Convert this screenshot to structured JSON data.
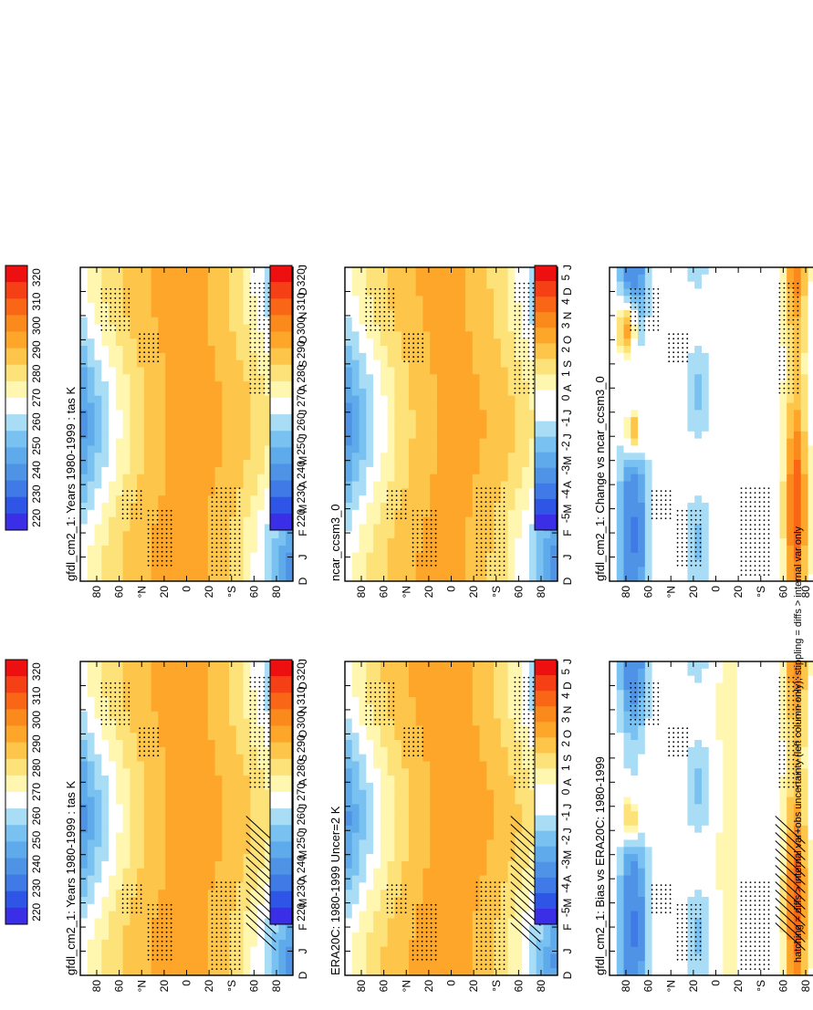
{
  "footnote": "hatching = diffs > internal var+obs uncertainty (left column only); stippling = diffs > internal var only",
  "colors": {
    "abs": [
      "#3a2ee6",
      "#2f55e6",
      "#3f7ae6",
      "#4f93e6",
      "#5faaeb",
      "#78c1f0",
      "#a9dcf5",
      "#ffffff",
      "#fff7b0",
      "#fde27a",
      "#fdc54a",
      "#fda62a",
      "#fb8a1c",
      "#f86616",
      "#f44014",
      "#ee1010"
    ],
    "diff": [
      "#3a2ee6",
      "#2f55e6",
      "#3f7ae6",
      "#4f93e6",
      "#5faaeb",
      "#78c1f0",
      "#a9dcf5",
      "#ffffff",
      "#ffffff",
      "#fff7b0",
      "#fde27a",
      "#fdc54a",
      "#fda62a",
      "#fb8a1c",
      "#f86616",
      "#f44014",
      "#ee1010"
    ]
  },
  "chart_data": [
    {
      "id": "p1",
      "type": "heatmap",
      "title": "gfdl_cm2_1: Years 1980-1999 : tas K",
      "months": [
        "D",
        "J",
        "F",
        "M",
        "A",
        "M",
        "J",
        "J",
        "A",
        "S",
        "O",
        "N",
        "D",
        "J"
      ],
      "lat_ticks": [
        "80",
        "60",
        "°N",
        "20",
        "0",
        "20",
        "°S",
        "60",
        "80"
      ],
      "legend": [
        "320",
        "310",
        "300",
        "290",
        "280",
        "270",
        "260",
        "250",
        "240",
        "230",
        "220"
      ],
      "palette": "abs",
      "hatch": true
    },
    {
      "id": "p2",
      "type": "heatmap",
      "title": "gfdl_cm2_1: Years 1980-1999 : tas K",
      "months": [
        "D",
        "J",
        "F",
        "M",
        "A",
        "M",
        "J",
        "J",
        "A",
        "S",
        "O",
        "N",
        "D",
        "J"
      ],
      "lat_ticks": [
        "80",
        "60",
        "°N",
        "20",
        "0",
        "20",
        "°S",
        "60",
        "80"
      ],
      "legend": [
        "320",
        "310",
        "300",
        "290",
        "280",
        "270",
        "260",
        "250",
        "240",
        "230",
        "220"
      ],
      "palette": "abs",
      "hatch": false
    },
    {
      "id": "p3",
      "type": "heatmap",
      "title": "ERA20C: 1980-1999 Uncer=2 K",
      "months": [
        "D",
        "J",
        "F",
        "M",
        "A",
        "M",
        "J",
        "J",
        "A",
        "S",
        "O",
        "N",
        "D",
        "J"
      ],
      "lat_ticks": [
        "80",
        "60",
        "°N",
        "20",
        "0",
        "20",
        "°S",
        "60",
        "80"
      ],
      "legend": [
        "320",
        "310",
        "300",
        "290",
        "280",
        "270",
        "260",
        "250",
        "240",
        "230",
        "220"
      ],
      "palette": "abs",
      "hatch": true
    },
    {
      "id": "p4",
      "type": "heatmap",
      "title": "ncar_ccsm3_0",
      "months": [
        "D",
        "J",
        "F",
        "M",
        "A",
        "M",
        "J",
        "J",
        "A",
        "S",
        "O",
        "N",
        "D",
        "J"
      ],
      "lat_ticks": [
        "80",
        "60",
        "°N",
        "20",
        "0",
        "20",
        "°S",
        "60",
        "80"
      ],
      "legend": [
        "320",
        "310",
        "300",
        "290",
        "280",
        "270",
        "260",
        "250",
        "240",
        "230",
        "220"
      ],
      "palette": "abs",
      "hatch": false
    },
    {
      "id": "p5",
      "type": "heatmap",
      "title": "gfdl_cm2_1: Bias vs ERA20C: 1980-1999",
      "months": [
        "D",
        "J",
        "F",
        "M",
        "A",
        "M",
        "J",
        "J",
        "A",
        "S",
        "O",
        "N",
        "D",
        "J"
      ],
      "lat_ticks": [
        "80",
        "60",
        "°N",
        "20",
        "0",
        "20",
        "°S",
        "60",
        "80"
      ],
      "legend": [
        "5",
        "4",
        "3",
        "2",
        "1",
        "0",
        "-1",
        "-2",
        "-3",
        "-4",
        "-5"
      ],
      "palette": "diff",
      "hatch": true
    },
    {
      "id": "p6",
      "type": "heatmap",
      "title": "gfdl_cm2_1: Change vs ncar_ccsm3_0",
      "months": [
        "D",
        "J",
        "F",
        "M",
        "A",
        "M",
        "J",
        "J",
        "A",
        "S",
        "O",
        "N",
        "D",
        "J"
      ],
      "lat_ticks": [
        "80",
        "60",
        "°N",
        "20",
        "0",
        "20",
        "°S",
        "60",
        "80"
      ],
      "legend": [
        "5",
        "4",
        "3",
        "2",
        "1",
        "0",
        "-1",
        "-2",
        "-3",
        "-4",
        "-5"
      ],
      "palette": "diff",
      "hatch": false
    }
  ]
}
